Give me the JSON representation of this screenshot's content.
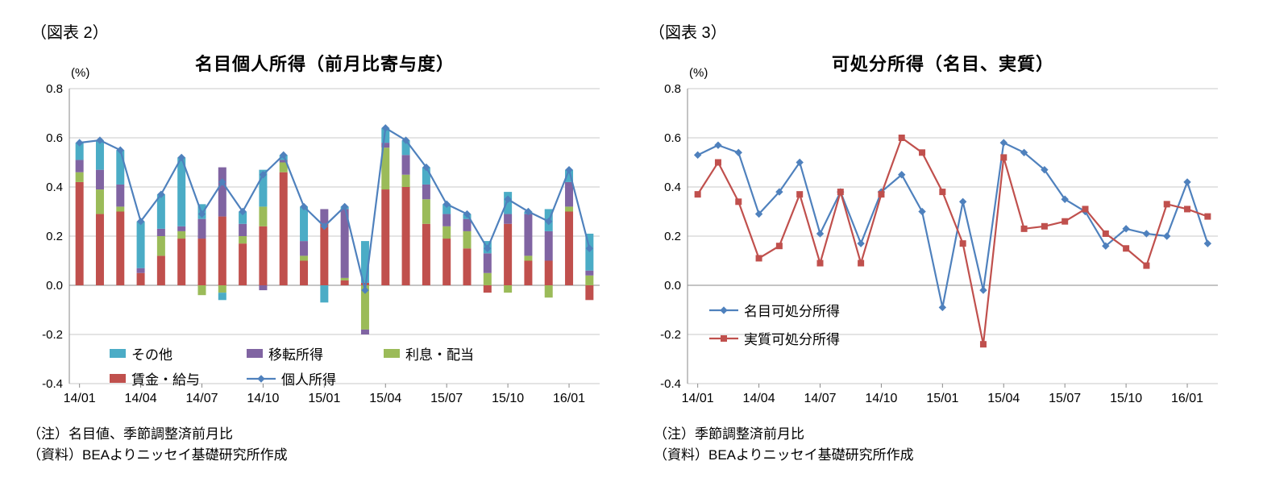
{
  "page": {
    "background": "#FFFFFF"
  },
  "figure2": {
    "tag": "（図表 2）",
    "title": "名目個人所得（前月比寄与度）",
    "unit_label": "(%)",
    "notes": [
      "（注）名目値、季節調整済前月比",
      "（資料）BEAよりニッセイ基礎研究所作成"
    ]
  },
  "figure3": {
    "tag": "（図表 3）",
    "title": "可処分所得（名目、実質）",
    "unit_label": "(%)",
    "notes": [
      "（注）季節調整済前月比",
      "（資料）BEAよりニッセイ基礎研究所作成"
    ]
  },
  "colors": {
    "other_teal": "#4BACC6",
    "transfer_purple": "#8064A2",
    "interest_green": "#9BBB59",
    "wage_red": "#C0504D",
    "line_blue": "#4F81BD",
    "gridline": "#C9C9C9",
    "axis": "#8A8A8A"
  },
  "chart_data": [
    {
      "type": "bar",
      "subtype": "stacked-bar-with-line",
      "title": "名目個人所得（前月比寄与度）",
      "ylabel": "(%)",
      "ylim": [
        -0.4,
        0.8
      ],
      "ytick_step": 0.2,
      "ytick_labels": [
        "0.8",
        "0.6",
        "0.4",
        "0.2",
        "0.0",
        "-0.2",
        "-0.4"
      ],
      "grid": true,
      "legend_position": "inside-bottom-left",
      "x": [
        "14/01",
        "14/02",
        "14/03",
        "14/04",
        "14/05",
        "14/06",
        "14/07",
        "14/08",
        "14/09",
        "14/10",
        "14/11",
        "14/12",
        "15/01",
        "15/02",
        "15/03",
        "15/04",
        "15/05",
        "15/06",
        "15/07",
        "15/08",
        "15/09",
        "15/10",
        "15/11",
        "15/12",
        "16/01",
        "16/02"
      ],
      "xticks_shown": [
        "14/01",
        "14/04",
        "14/07",
        "14/10",
        "15/01",
        "15/04",
        "15/07",
        "15/10",
        "16/01"
      ],
      "bar_series": [
        {
          "name": "賃金・給与",
          "color": "#C0504D",
          "values": [
            0.42,
            0.29,
            0.3,
            0.05,
            0.12,
            0.19,
            0.19,
            0.28,
            0.17,
            0.24,
            0.46,
            0.1,
            0.25,
            0.02,
            0.01,
            0.39,
            0.4,
            0.25,
            0.19,
            0.15,
            -0.03,
            0.25,
            0.1,
            0.1,
            0.3,
            -0.06
          ]
        },
        {
          "name": "利息・配当",
          "color": "#9BBB59",
          "values": [
            0.04,
            0.1,
            0.02,
            0.0,
            0.08,
            0.03,
            -0.04,
            -0.03,
            0.03,
            0.08,
            0.04,
            0.02,
            0.0,
            0.01,
            -0.18,
            0.17,
            0.05,
            0.1,
            0.05,
            0.07,
            0.05,
            -0.03,
            0.02,
            -0.05,
            0.02,
            0.04
          ]
        },
        {
          "name": "移転所得",
          "color": "#8064A2",
          "values": [
            0.05,
            0.08,
            0.09,
            0.02,
            0.03,
            0.02,
            0.08,
            0.2,
            0.05,
            -0.02,
            0.01,
            0.06,
            0.06,
            0.28,
            -0.02,
            0.02,
            0.08,
            0.06,
            0.05,
            0.05,
            0.08,
            0.04,
            0.17,
            0.12,
            0.1,
            0.02
          ]
        },
        {
          "name": "その他",
          "color": "#4BACC6",
          "values": [
            0.07,
            0.12,
            0.14,
            0.19,
            0.14,
            0.28,
            0.06,
            -0.03,
            0.05,
            0.15,
            0.02,
            0.14,
            -0.07,
            0.01,
            0.17,
            0.06,
            0.06,
            0.07,
            0.04,
            0.02,
            0.05,
            0.09,
            0.01,
            0.09,
            0.05,
            0.15
          ]
        }
      ],
      "line_series": [
        {
          "name": "個人所得",
          "color": "#4F81BD",
          "marker": "diamond",
          "values": [
            0.58,
            0.59,
            0.55,
            0.26,
            0.37,
            0.52,
            0.29,
            0.42,
            0.3,
            0.45,
            0.53,
            0.32,
            0.24,
            0.32,
            -0.02,
            0.64,
            0.59,
            0.48,
            0.33,
            0.29,
            0.15,
            0.35,
            0.3,
            0.26,
            0.47,
            0.15
          ]
        }
      ],
      "legend_rows": [
        [
          "その他",
          "移転所得",
          "利息・配当"
        ],
        [
          "賃金・給与",
          "個人所得"
        ]
      ]
    },
    {
      "type": "line",
      "title": "可処分所得（名目、実質）",
      "ylabel": "(%)",
      "ylim": [
        -0.4,
        0.8
      ],
      "ytick_step": 0.2,
      "ytick_labels": [
        "0.8",
        "0.6",
        "0.4",
        "0.2",
        "0.0",
        "-0.2",
        "-0.4"
      ],
      "grid": true,
      "legend_position": "inside-left-middle",
      "x": [
        "14/01",
        "14/02",
        "14/03",
        "14/04",
        "14/05",
        "14/06",
        "14/07",
        "14/08",
        "14/09",
        "14/10",
        "14/11",
        "14/12",
        "15/01",
        "15/02",
        "15/03",
        "15/04",
        "15/05",
        "15/06",
        "15/07",
        "15/08",
        "15/09",
        "15/10",
        "15/11",
        "15/12",
        "16/01",
        "16/02"
      ],
      "xticks_shown": [
        "14/01",
        "14/04",
        "14/07",
        "14/10",
        "15/01",
        "15/04",
        "15/07",
        "15/10",
        "16/01"
      ],
      "series": [
        {
          "name": "名目可処分所得",
          "color": "#4F81BD",
          "marker": "diamond",
          "values": [
            0.53,
            0.57,
            0.54,
            0.29,
            0.38,
            0.5,
            0.21,
            0.38,
            0.17,
            0.38,
            0.45,
            0.3,
            -0.09,
            0.34,
            -0.02,
            0.58,
            0.54,
            0.47,
            0.35,
            0.3,
            0.16,
            0.23,
            0.21,
            0.2,
            0.42,
            0.17
          ]
        },
        {
          "name": "実質可処分所得",
          "color": "#C0504D",
          "marker": "square",
          "values": [
            0.37,
            0.5,
            0.34,
            0.11,
            0.16,
            0.37,
            0.09,
            0.38,
            0.09,
            0.37,
            0.6,
            0.54,
            0.38,
            0.17,
            -0.24,
            0.52,
            0.23,
            0.24,
            0.26,
            0.31,
            0.21,
            0.15,
            0.08,
            0.33,
            0.31,
            0.28
          ]
        }
      ]
    }
  ]
}
